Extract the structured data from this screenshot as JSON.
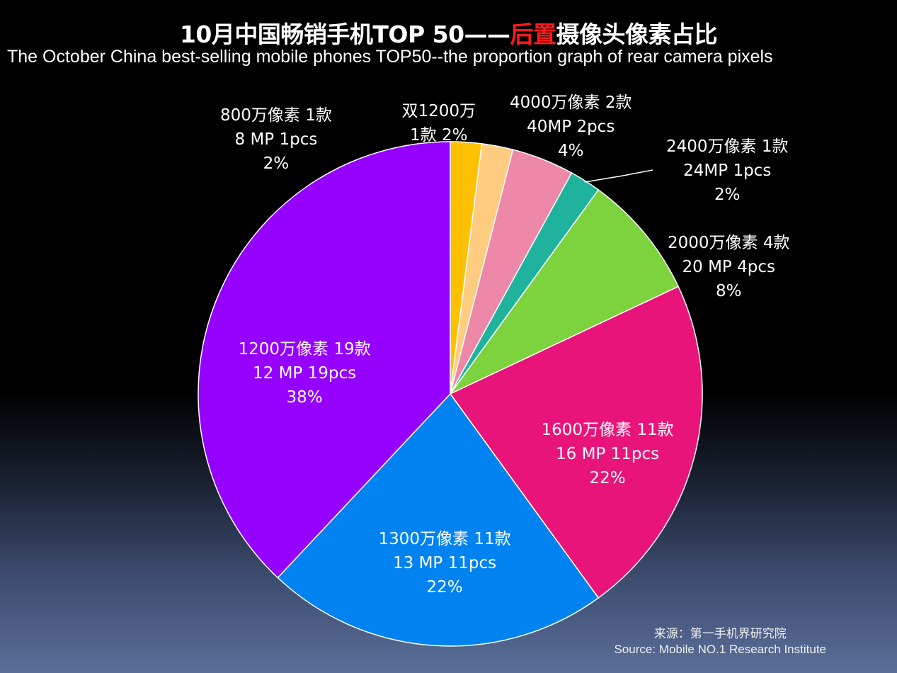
{
  "title": {
    "pre": "10月中国畅销手机TOP 50——",
    "highlight": "后置",
    "post": "摄像头像素占比"
  },
  "subtitle": "The October China best-selling mobile phones TOP50--the proportion graph of rear camera pixels",
  "source": {
    "line1": "来源：第一手机界研究院",
    "line2": "Source: Mobile NO.1 Research Institute"
  },
  "chart_data": {
    "type": "pie",
    "title": "10月中国畅销手机TOP 50——后置摄像头像素占比",
    "subtitle": "The October China best-selling mobile phones TOP50--the proportion graph of rear camera pixels",
    "start": "12 o'clock, clockwise",
    "slices": [
      {
        "id": "dual12",
        "value": 1,
        "percent": 2,
        "color": "#FFC000",
        "lines": [
          "双1200万",
          "1款  2%"
        ]
      },
      {
        "id": "mp8",
        "value": 1,
        "percent": 2,
        "color": "#FFCC80",
        "lines": [
          "800万像素  1款",
          "8 MP 1pcs",
          "2%"
        ]
      },
      {
        "id": "mp40",
        "value": 2,
        "percent": 4,
        "color": "#EE88A8",
        "lines": [
          "4000万像素  2款",
          "40MP 2pcs",
          "4%"
        ]
      },
      {
        "id": "mp24",
        "value": 1,
        "percent": 2,
        "color": "#1FB39E",
        "lines": [
          "2400万像素  1款",
          "24MP 1pcs",
          "2%"
        ]
      },
      {
        "id": "mp20",
        "value": 4,
        "percent": 8,
        "color": "#7DD33E",
        "lines": [
          "2000万像素 4款",
          "20 MP 4pcs",
          "8%"
        ]
      },
      {
        "id": "mp16",
        "value": 11,
        "percent": 22,
        "color": "#E8147A",
        "lines": [
          "1600万像素 11款",
          "16 MP 11pcs",
          "22%"
        ]
      },
      {
        "id": "mp13",
        "value": 11,
        "percent": 22,
        "color": "#0083F0",
        "lines": [
          "1300万像素 11款",
          "13 MP 11pcs",
          "22%"
        ]
      },
      {
        "id": "mp12",
        "value": 19,
        "percent": 38,
        "color": "#9500FF",
        "lines": [
          "1200万像素  19款",
          "12 MP 19pcs",
          "38%"
        ]
      }
    ]
  }
}
